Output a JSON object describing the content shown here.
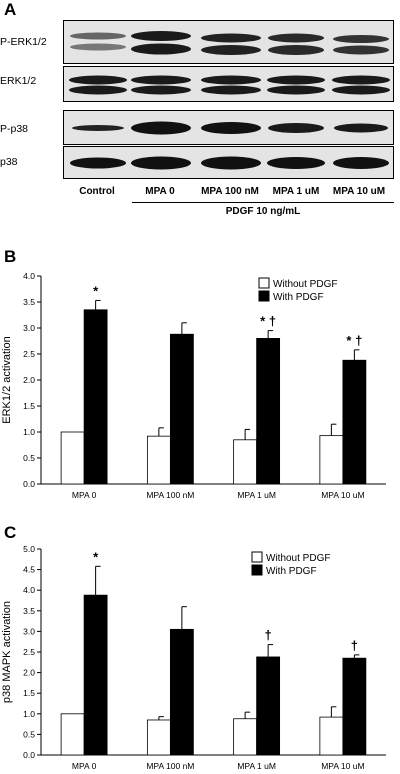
{
  "panel_a": {
    "letter": "A",
    "blot_labels": [
      "P-ERK1/2",
      "ERK1/2",
      "P-p38",
      "p38"
    ],
    "lanes": [
      "Control",
      "MPA 0",
      "MPA 100 nM",
      "MPA 1 uM",
      "MPA 10 uM"
    ],
    "treatment_label": "PDGF 10 ng/mL"
  },
  "panel_b": {
    "letter": "B",
    "legend": [
      "Without PDGF",
      "With PDGF"
    ]
  },
  "panel_c": {
    "letter": "C",
    "legend": [
      "Without PDGF",
      "With PDGF"
    ]
  },
  "colors": {
    "without": "#ffffff",
    "with": "#000000",
    "blot_bg": "#e4e4e4",
    "band": "#1a1a1a"
  },
  "chart_data": [
    {
      "type": "bar",
      "panel": "B",
      "categories": [
        "MPA 0",
        "MPA 100 nM",
        "MPA 1 uM",
        "MPA 10 uM"
      ],
      "ylabel": "ERK1/2  activation",
      "ylim": [
        0,
        4.0
      ],
      "yticks": [
        "0.0",
        "0.5",
        "1.0",
        "1.5",
        "2.0",
        "2.5",
        "3.0",
        "3.5",
        "4.0"
      ],
      "series": [
        {
          "name": "Without PDGF",
          "values": [
            1.0,
            0.92,
            0.85,
            0.93
          ],
          "errors": [
            0,
            0.16,
            0.2,
            0.22
          ]
        },
        {
          "name": "With PDGF",
          "values": [
            3.35,
            2.88,
            2.8,
            2.38
          ],
          "errors": [
            0.18,
            0.22,
            0.15,
            0.2
          ]
        }
      ],
      "annotations": [
        "*",
        "",
        "* †",
        "* †"
      ]
    },
    {
      "type": "bar",
      "panel": "C",
      "categories": [
        "MPA 0",
        "MPA 100 nM",
        "MPA 1 uM",
        "MPA 10 uM"
      ],
      "ylabel": "p38 MAPK  activation",
      "ylim": [
        0,
        5.0
      ],
      "yticks": [
        "0.0",
        "0.5",
        "1.0",
        "1.5",
        "2.0",
        "2.5",
        "3.0",
        "3.5",
        "4.0",
        "4.5",
        "5.0"
      ],
      "series": [
        {
          "name": "Without PDGF",
          "values": [
            1.0,
            0.85,
            0.88,
            0.92
          ],
          "errors": [
            0,
            0.08,
            0.16,
            0.25
          ]
        },
        {
          "name": "With PDGF",
          "values": [
            3.88,
            3.05,
            2.38,
            2.35
          ],
          "errors": [
            0.7,
            0.55,
            0.3,
            0.08
          ]
        }
      ],
      "annotations": [
        "*",
        "",
        "†",
        "†"
      ]
    }
  ]
}
